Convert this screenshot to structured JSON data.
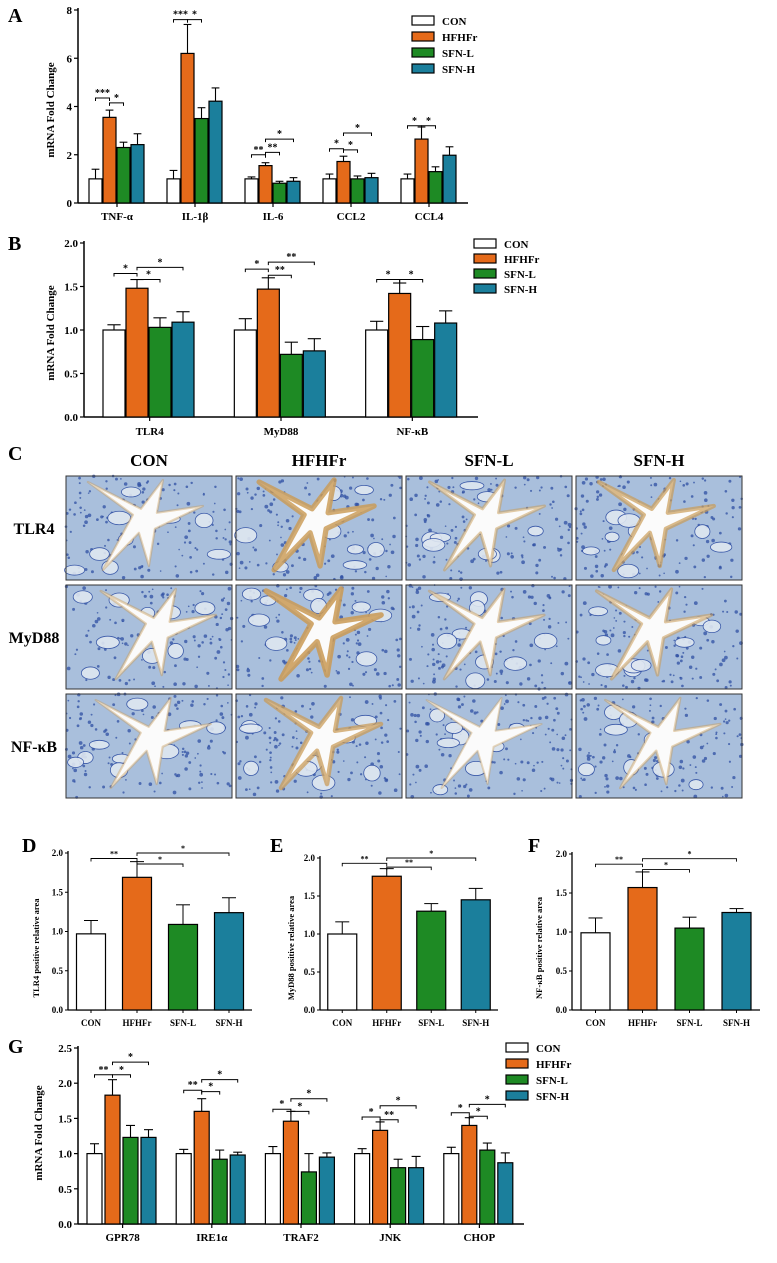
{
  "colors": {
    "CON": "#ffffff",
    "HFHFr": "#e56a1a",
    "SFN-L": "#1e8a24",
    "SFN-H": "#1b7f9c"
  },
  "micrograph_palette": {
    "tissue": "#a9bfdc",
    "nuclei": "#2f4fa3",
    "stain_brown": "#c99a55",
    "lumen": "#fbfbfb"
  },
  "chart_data": [
    {
      "id": "A",
      "type": "bar",
      "panel_label": "A",
      "ylabel": "mRNA Fold Change",
      "ylim": [
        0,
        8
      ],
      "yticks": [
        "0",
        "2",
        "4",
        "6",
        "8"
      ],
      "categories": [
        "TNF-α",
        "IL-1β",
        "IL-6",
        "CCL2",
        "CCL4"
      ],
      "legend": [
        "CON",
        "HFHFr",
        "SFN-L",
        "SFN-H"
      ],
      "series": [
        {
          "name": "CON",
          "values": [
            1.0,
            1.0,
            1.0,
            1.0,
            1.0
          ],
          "errors": [
            0.4,
            0.35,
            0.08,
            0.2,
            0.2
          ]
        },
        {
          "name": "HFHFr",
          "values": [
            3.55,
            6.2,
            1.55,
            1.72,
            2.65
          ],
          "errors": [
            0.3,
            1.2,
            0.12,
            0.22,
            0.5
          ]
        },
        {
          "name": "SFN-L",
          "values": [
            2.3,
            3.5,
            0.82,
            1.0,
            1.3
          ],
          "errors": [
            0.22,
            0.45,
            0.08,
            0.12,
            0.2
          ]
        },
        {
          "name": "SFN-H",
          "values": [
            2.42,
            4.22,
            0.9,
            1.05,
            1.98
          ],
          "errors": [
            0.45,
            0.55,
            0.15,
            0.18,
            0.35
          ]
        }
      ],
      "significance": [
        {
          "cat": 0,
          "from": 0,
          "to": 1,
          "y": 4.35,
          "label": "***"
        },
        {
          "cat": 0,
          "from": 1,
          "to": 2,
          "y": 4.15,
          "label": "*"
        },
        {
          "cat": 1,
          "from": 0,
          "to": 1,
          "y": 7.6,
          "label": "***"
        },
        {
          "cat": 1,
          "from": 1,
          "to": 2,
          "y": 7.6,
          "label": "*"
        },
        {
          "cat": 2,
          "from": 0,
          "to": 1,
          "y": 2.0,
          "label": "**"
        },
        {
          "cat": 2,
          "from": 1,
          "to": 2,
          "y": 2.1,
          "label": "**"
        },
        {
          "cat": 2,
          "from": 1,
          "to": 3,
          "y": 2.65,
          "label": "*"
        },
        {
          "cat": 3,
          "from": 0,
          "to": 1,
          "y": 2.25,
          "label": "*"
        },
        {
          "cat": 3,
          "from": 1,
          "to": 2,
          "y": 2.2,
          "label": "*"
        },
        {
          "cat": 3,
          "from": 1,
          "to": 3,
          "y": 2.9,
          "label": "*"
        },
        {
          "cat": 4,
          "from": 0,
          "to": 1,
          "y": 3.2,
          "label": "*"
        },
        {
          "cat": 4,
          "from": 1,
          "to": 2,
          "y": 3.2,
          "label": "*"
        }
      ]
    },
    {
      "id": "B",
      "type": "bar",
      "panel_label": "B",
      "ylabel": "mRNA Fold Change",
      "ylim": [
        0,
        2.0
      ],
      "yticks": [
        "0.0",
        "0.5",
        "1.0",
        "1.5",
        "2.0"
      ],
      "categories": [
        "TLR4",
        "MyD88",
        "NF-κB"
      ],
      "legend": [
        "CON",
        "HFHFr",
        "SFN-L",
        "SFN-H"
      ],
      "series": [
        {
          "name": "CON",
          "values": [
            1.0,
            1.0,
            1.0
          ],
          "errors": [
            0.06,
            0.13,
            0.1
          ]
        },
        {
          "name": "HFHFr",
          "values": [
            1.48,
            1.47,
            1.42
          ],
          "errors": [
            0.1,
            0.13,
            0.12
          ]
        },
        {
          "name": "SFN-L",
          "values": [
            1.03,
            0.72,
            0.89
          ],
          "errors": [
            0.11,
            0.14,
            0.15
          ]
        },
        {
          "name": "SFN-H",
          "values": [
            1.09,
            0.76,
            1.08
          ],
          "errors": [
            0.12,
            0.14,
            0.14
          ]
        }
      ],
      "significance": [
        {
          "cat": 0,
          "from": 0,
          "to": 1,
          "y": 1.65,
          "label": "*"
        },
        {
          "cat": 0,
          "from": 1,
          "to": 2,
          "y": 1.58,
          "label": "*"
        },
        {
          "cat": 0,
          "from": 1,
          "to": 3,
          "y": 1.72,
          "label": "*"
        },
        {
          "cat": 1,
          "from": 0,
          "to": 1,
          "y": 1.7,
          "label": "*"
        },
        {
          "cat": 1,
          "from": 1,
          "to": 2,
          "y": 1.63,
          "label": "**"
        },
        {
          "cat": 1,
          "from": 1,
          "to": 3,
          "y": 1.78,
          "label": "**"
        },
        {
          "cat": 2,
          "from": 0,
          "to": 1,
          "y": 1.58,
          "label": "*"
        },
        {
          "cat": 2,
          "from": 1,
          "to": 2,
          "y": 1.58,
          "label": "*"
        }
      ]
    },
    {
      "id": "D",
      "type": "bar",
      "panel_label": "D",
      "ylabel": "TLR4 positive relative area",
      "ylim": [
        0,
        2.0
      ],
      "yticks": [
        "0.0",
        "0.5",
        "1.0",
        "1.5",
        "2.0"
      ],
      "categories": [
        "CON",
        "HFHFr",
        "SFN-L",
        "SFN-H"
      ],
      "series": [
        {
          "name": "",
          "values": [
            0.97,
            1.69,
            1.09,
            1.24
          ],
          "errors": [
            0.17,
            0.2,
            0.25,
            0.19
          ]
        }
      ],
      "significance": [
        {
          "from": 0,
          "to": 1,
          "y": 1.93,
          "label": "**"
        },
        {
          "from": 1,
          "to": 2,
          "y": 1.86,
          "label": "*"
        },
        {
          "from": 1,
          "to": 3,
          "y": 2.0,
          "label": "*"
        }
      ]
    },
    {
      "id": "E",
      "type": "bar",
      "panel_label": "E",
      "ylabel": "MyD88 positive relative area",
      "ylim": [
        0,
        2.0
      ],
      "yticks": [
        "0.0",
        "0.5",
        "1.0",
        "1.5",
        "2.0"
      ],
      "categories": [
        "CON",
        "HFHFr",
        "SFN-L",
        "SFN-H"
      ],
      "series": [
        {
          "name": "",
          "values": [
            1.0,
            1.76,
            1.3,
            1.45
          ],
          "errors": [
            0.16,
            0.1,
            0.1,
            0.15
          ]
        }
      ],
      "significance": [
        {
          "from": 0,
          "to": 1,
          "y": 1.93,
          "label": "**"
        },
        {
          "from": 1,
          "to": 2,
          "y": 1.88,
          "label": "**"
        },
        {
          "from": 1,
          "to": 3,
          "y": 2.0,
          "label": "*"
        }
      ]
    },
    {
      "id": "F",
      "type": "bar",
      "panel_label": "F",
      "ylabel": "NF-κB positive relative area",
      "ylim": [
        0,
        2.0
      ],
      "yticks": [
        "0.0",
        "0.5",
        "1.0",
        "1.5",
        "2.0"
      ],
      "categories": [
        "CON",
        "HFHFr",
        "SFN-L",
        "SFN-H"
      ],
      "series": [
        {
          "name": "",
          "values": [
            0.99,
            1.57,
            1.05,
            1.25
          ],
          "errors": [
            0.19,
            0.2,
            0.14,
            0.05
          ]
        }
      ],
      "significance": [
        {
          "from": 0,
          "to": 1,
          "y": 1.87,
          "label": "**"
        },
        {
          "from": 1,
          "to": 2,
          "y": 1.8,
          "label": "*"
        },
        {
          "from": 1,
          "to": 3,
          "y": 1.94,
          "label": "*"
        }
      ]
    },
    {
      "id": "G",
      "type": "bar",
      "panel_label": "G",
      "ylabel": "mRNA Fold Change",
      "ylim": [
        0,
        2.5
      ],
      "yticks": [
        "0.0",
        "0.5",
        "1.0",
        "1.5",
        "2.0",
        "2.5"
      ],
      "categories": [
        "GPR78",
        "IRE1α",
        "TRAF2",
        "JNK",
        "CHOP"
      ],
      "legend": [
        "CON",
        "HFHFr",
        "SFN-L",
        "SFN-H"
      ],
      "series": [
        {
          "name": "CON",
          "values": [
            1.0,
            1.0,
            1.0,
            1.0,
            1.0
          ],
          "errors": [
            0.14,
            0.06,
            0.1,
            0.07,
            0.09
          ]
        },
        {
          "name": "HFHFr",
          "values": [
            1.83,
            1.6,
            1.46,
            1.33,
            1.4
          ],
          "errors": [
            0.22,
            0.18,
            0.14,
            0.12,
            0.11
          ]
        },
        {
          "name": "SFN-L",
          "values": [
            1.23,
            0.92,
            0.74,
            0.8,
            1.05
          ],
          "errors": [
            0.17,
            0.13,
            0.26,
            0.12,
            0.1
          ]
        },
        {
          "name": "SFN-H",
          "values": [
            1.23,
            0.98,
            0.95,
            0.8,
            0.87
          ],
          "errors": [
            0.11,
            0.04,
            0.06,
            0.16,
            0.14
          ]
        }
      ],
      "significance": [
        {
          "cat": 0,
          "from": 0,
          "to": 1,
          "y": 2.12,
          "label": "**"
        },
        {
          "cat": 0,
          "from": 1,
          "to": 2,
          "y": 2.12,
          "label": "*"
        },
        {
          "cat": 0,
          "from": 1,
          "to": 3,
          "y": 2.3,
          "label": "*"
        },
        {
          "cat": 1,
          "from": 0,
          "to": 1,
          "y": 1.9,
          "label": "**"
        },
        {
          "cat": 1,
          "from": 1,
          "to": 2,
          "y": 1.88,
          "label": "*"
        },
        {
          "cat": 1,
          "from": 1,
          "to": 3,
          "y": 2.05,
          "label": "*"
        },
        {
          "cat": 2,
          "from": 0,
          "to": 1,
          "y": 1.63,
          "label": "*"
        },
        {
          "cat": 2,
          "from": 1,
          "to": 2,
          "y": 1.6,
          "label": "*"
        },
        {
          "cat": 2,
          "from": 1,
          "to": 3,
          "y": 1.78,
          "label": "*"
        },
        {
          "cat": 3,
          "from": 0,
          "to": 1,
          "y": 1.52,
          "label": "*"
        },
        {
          "cat": 3,
          "from": 1,
          "to": 2,
          "y": 1.48,
          "label": "**"
        },
        {
          "cat": 3,
          "from": 1,
          "to": 3,
          "y": 1.68,
          "label": "*"
        },
        {
          "cat": 4,
          "from": 0,
          "to": 1,
          "y": 1.58,
          "label": "*"
        },
        {
          "cat": 4,
          "from": 1,
          "to": 2,
          "y": 1.53,
          "label": "*"
        },
        {
          "cat": 4,
          "from": 1,
          "to": 3,
          "y": 1.7,
          "label": "*"
        }
      ]
    }
  ],
  "micrographs": {
    "panel_label": "C",
    "columns": [
      "CON",
      "HFHFr",
      "SFN-L",
      "SFN-H"
    ],
    "rows": [
      "TLR4",
      "MyD88",
      "NF-κB"
    ],
    "stain_level": [
      [
        0.15,
        0.75,
        0.3,
        0.55
      ],
      [
        0.2,
        0.8,
        0.25,
        0.35
      ],
      [
        0.15,
        0.6,
        0.1,
        0.2
      ]
    ]
  }
}
